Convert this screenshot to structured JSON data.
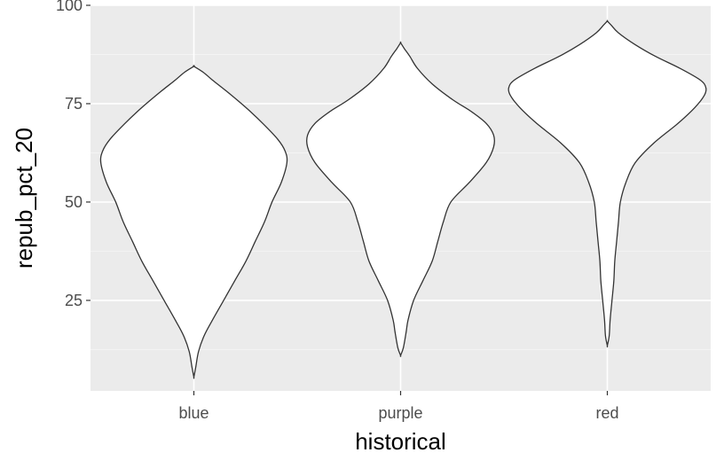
{
  "chart_data": {
    "type": "violin",
    "title": "",
    "xlabel": "historical",
    "ylabel": "repub_pct_20",
    "categories": [
      "blue",
      "purple",
      "red"
    ],
    "ylim": [
      2,
      100
    ],
    "yticks": [
      25,
      50,
      75,
      100
    ],
    "grid": true,
    "legend": "none",
    "colors": {
      "panel": "#ebebeb",
      "grid_major": "#ffffff",
      "grid_minor": "#f4f4f4",
      "violin_fill": "#ffffff",
      "violin_outline": "#333333",
      "tick_label": "#4d4d4d",
      "tick_mark": "#333333",
      "axis_title": "#000000"
    },
    "series": [
      {
        "category": "blue",
        "profile": [
          {
            "y": 5.5,
            "w": 0.0
          },
          {
            "y": 8,
            "w": 0.01
          },
          {
            "y": 12,
            "w": 0.025
          },
          {
            "y": 16,
            "w": 0.055
          },
          {
            "y": 20,
            "w": 0.1
          },
          {
            "y": 25,
            "w": 0.16
          },
          {
            "y": 30,
            "w": 0.22
          },
          {
            "y": 35,
            "w": 0.28
          },
          {
            "y": 40,
            "w": 0.33
          },
          {
            "y": 45,
            "w": 0.38
          },
          {
            "y": 50,
            "w": 0.42
          },
          {
            "y": 55,
            "w": 0.47
          },
          {
            "y": 60,
            "w": 0.5
          },
          {
            "y": 63,
            "w": 0.49
          },
          {
            "y": 66,
            "w": 0.45
          },
          {
            "y": 70,
            "w": 0.37
          },
          {
            "y": 74,
            "w": 0.28
          },
          {
            "y": 78,
            "w": 0.18
          },
          {
            "y": 81,
            "w": 0.1
          },
          {
            "y": 83,
            "w": 0.05
          },
          {
            "y": 84.5,
            "w": 0.0
          }
        ]
      },
      {
        "category": "purple",
        "profile": [
          {
            "y": 11,
            "w": 0.0
          },
          {
            "y": 13,
            "w": 0.015
          },
          {
            "y": 17,
            "w": 0.03
          },
          {
            "y": 20,
            "w": 0.04
          },
          {
            "y": 25,
            "w": 0.07
          },
          {
            "y": 30,
            "w": 0.12
          },
          {
            "y": 35,
            "w": 0.17
          },
          {
            "y": 40,
            "w": 0.2
          },
          {
            "y": 45,
            "w": 0.23
          },
          {
            "y": 50,
            "w": 0.27
          },
          {
            "y": 55,
            "w": 0.37
          },
          {
            "y": 60,
            "w": 0.46
          },
          {
            "y": 64,
            "w": 0.5
          },
          {
            "y": 67,
            "w": 0.5
          },
          {
            "y": 70,
            "w": 0.46
          },
          {
            "y": 73,
            "w": 0.38
          },
          {
            "y": 76,
            "w": 0.28
          },
          {
            "y": 80,
            "w": 0.17
          },
          {
            "y": 84,
            "w": 0.09
          },
          {
            "y": 87,
            "w": 0.05
          },
          {
            "y": 89,
            "w": 0.02
          },
          {
            "y": 90.5,
            "w": 0.0
          }
        ]
      },
      {
        "category": "red",
        "profile": [
          {
            "y": 13.5,
            "w": 0.0
          },
          {
            "y": 16,
            "w": 0.01
          },
          {
            "y": 20,
            "w": 0.015
          },
          {
            "y": 25,
            "w": 0.025
          },
          {
            "y": 30,
            "w": 0.035
          },
          {
            "y": 35,
            "w": 0.04
          },
          {
            "y": 40,
            "w": 0.05
          },
          {
            "y": 45,
            "w": 0.06
          },
          {
            "y": 50,
            "w": 0.07
          },
          {
            "y": 55,
            "w": 0.1
          },
          {
            "y": 60,
            "w": 0.15
          },
          {
            "y": 65,
            "w": 0.25
          },
          {
            "y": 70,
            "w": 0.38
          },
          {
            "y": 74,
            "w": 0.47
          },
          {
            "y": 77,
            "w": 0.52
          },
          {
            "y": 79,
            "w": 0.53
          },
          {
            "y": 81,
            "w": 0.5
          },
          {
            "y": 84,
            "w": 0.39
          },
          {
            "y": 87,
            "w": 0.26
          },
          {
            "y": 90,
            "w": 0.15
          },
          {
            "y": 93,
            "w": 0.06
          },
          {
            "y": 95,
            "w": 0.02
          },
          {
            "y": 96,
            "w": 0.0
          }
        ]
      }
    ]
  }
}
